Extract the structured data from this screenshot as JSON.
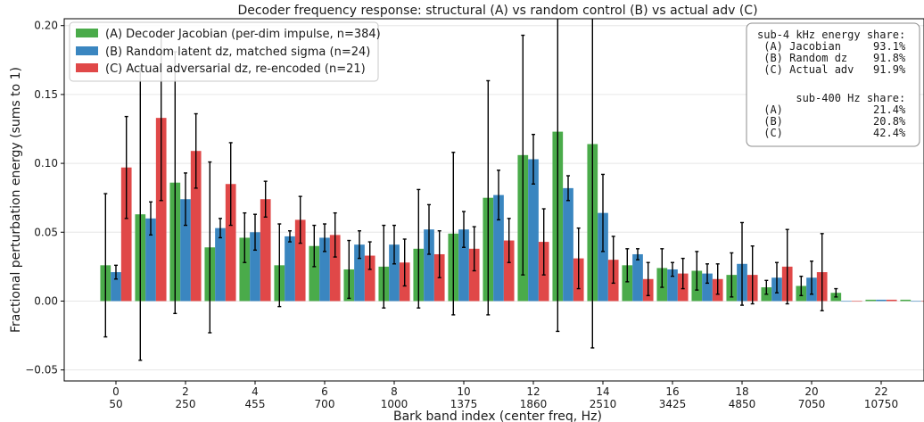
{
  "chart_data": {
    "type": "bar",
    "title": "Decoder frequency response: structural (A) vs random control (B) vs actual adv (C)",
    "xlabel": "Bark band index (center freq, Hz)",
    "ylabel": "Fractional perturbation energy (sums to 1)",
    "ylim": [
      -0.058,
      0.205
    ],
    "yticks": [
      "−0.05",
      "0.00",
      "0.05",
      "0.10",
      "0.15",
      "0.20"
    ],
    "ytick_values": [
      -0.05,
      0.0,
      0.05,
      0.1,
      0.15,
      0.2
    ],
    "grid": true,
    "legend_position": "top-left",
    "categories": [
      0,
      1,
      2,
      3,
      4,
      5,
      6,
      7,
      8,
      9,
      10,
      11,
      12,
      13,
      14,
      15,
      16,
      17,
      18,
      19,
      20,
      21,
      22,
      23
    ],
    "xticks": [
      {
        "band": 0,
        "index": "0",
        "freq": "50"
      },
      {
        "band": 2,
        "index": "2",
        "freq": "250"
      },
      {
        "band": 4,
        "index": "4",
        "freq": "455"
      },
      {
        "band": 6,
        "index": "6",
        "freq": "700"
      },
      {
        "band": 8,
        "index": "8",
        "freq": "1000"
      },
      {
        "band": 10,
        "index": "10",
        "freq": "1375"
      },
      {
        "band": 12,
        "index": "12",
        "freq": "1860"
      },
      {
        "band": 14,
        "index": "14",
        "freq": "2510"
      },
      {
        "band": 16,
        "index": "16",
        "freq": "3425"
      },
      {
        "band": 18,
        "index": "18",
        "freq": "4850"
      },
      {
        "band": 20,
        "index": "20",
        "freq": "7050"
      },
      {
        "band": 22,
        "index": "22",
        "freq": "10750"
      }
    ],
    "series": [
      {
        "name": "(A) Decoder Jacobian (per-dim impulse, n=384)",
        "color": "#4aab4a",
        "values": [
          0.026,
          0.063,
          0.086,
          0.039,
          0.046,
          0.026,
          0.04,
          0.023,
          0.025,
          0.038,
          0.049,
          0.075,
          0.106,
          0.123,
          0.114,
          0.026,
          0.024,
          0.022,
          0.019,
          0.01,
          0.011,
          0.006,
          0.001,
          0.001
        ],
        "errors": [
          0.052,
          0.106,
          0.095,
          0.062,
          0.018,
          0.03,
          0.015,
          0.021,
          0.03,
          0.043,
          0.059,
          0.085,
          0.087,
          0.145,
          0.148,
          0.012,
          0.014,
          0.014,
          0.016,
          0.005,
          0.007,
          0.003,
          0.0,
          0.0
        ]
      },
      {
        "name": "(B) Random latent dz, matched sigma (n=24)",
        "color": "#3a86c0",
        "values": [
          0.021,
          0.06,
          0.074,
          0.053,
          0.05,
          0.047,
          0.046,
          0.041,
          0.041,
          0.052,
          0.052,
          0.077,
          0.103,
          0.082,
          0.064,
          0.034,
          0.023,
          0.02,
          0.027,
          0.017,
          0.017,
          0.0,
          0.001,
          0.0
        ],
        "errors": [
          0.005,
          0.012,
          0.019,
          0.007,
          0.013,
          0.004,
          0.01,
          0.01,
          0.014,
          0.018,
          0.013,
          0.018,
          0.018,
          0.009,
          0.028,
          0.004,
          0.005,
          0.007,
          0.03,
          0.011,
          0.012,
          0.0,
          0.0,
          0.0
        ]
      },
      {
        "name": "(C) Actual adversarial dz, re-encoded (n=21)",
        "color": "#e04848",
        "values": [
          0.097,
          0.133,
          0.109,
          0.085,
          0.074,
          0.059,
          0.048,
          0.033,
          0.028,
          0.034,
          0.038,
          0.044,
          0.043,
          0.031,
          0.03,
          0.016,
          0.02,
          0.016,
          0.019,
          0.025,
          0.021,
          0.0,
          0.001,
          0.0
        ],
        "errors": [
          0.037,
          0.06,
          0.027,
          0.03,
          0.013,
          0.017,
          0.016,
          0.01,
          0.017,
          0.017,
          0.016,
          0.016,
          0.024,
          0.022,
          0.017,
          0.012,
          0.011,
          0.011,
          0.021,
          0.027,
          0.028,
          0.0,
          0.0,
          0.0
        ]
      }
    ],
    "annotation": {
      "lines": [
        "sub-4 kHz energy share:",
        " (A) Jacobian     93.1%",
        " (B) Random dz    91.8%",
        " (C) Actual adv   91.9%",
        "",
        "      sub-400 Hz share:",
        " (A)              21.4%",
        " (B)              20.8%",
        " (C)              42.4%"
      ],
      "position": "top-right"
    }
  }
}
